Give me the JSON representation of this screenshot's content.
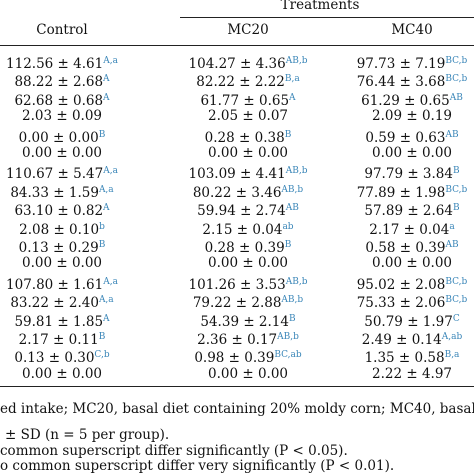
{
  "table": {
    "group_header": "Treatments",
    "columns": [
      "Control",
      "MC20",
      "MC40"
    ],
    "rows": [
      [
        {
          "text": "112.56 ± 4.61",
          "sup": "A,a"
        },
        {
          "text": "104.27 ± 4.36",
          "sup": "AB,b"
        },
        {
          "text": "97.73 ± 7.19",
          "sup": "BC,b"
        }
      ],
      [
        {
          "text": "88.22 ± 2.68",
          "sup": "A"
        },
        {
          "text": "82.22 ± 2.22",
          "sup": "B,a"
        },
        {
          "text": "76.44 ± 3.68",
          "sup": "BC,b"
        }
      ],
      [
        {
          "text": "62.68 ± 0.68",
          "sup": "A"
        },
        {
          "text": "61.77 ± 0.65",
          "sup": "A"
        },
        {
          "text": "61.29 ± 0.65",
          "sup": "AB"
        }
      ],
      [
        {
          "text": "2.03 ± 0.09"
        },
        {
          "text": "2.05 ± 0.07"
        },
        {
          "text": "2.09 ± 0.19"
        }
      ],
      [
        {
          "text": "0.00 ± 0.00",
          "sup": "B"
        },
        {
          "text": "0.28 ± 0.38",
          "sup": "B"
        },
        {
          "text": "0.59 ± 0.63",
          "sup": "AB"
        }
      ],
      [
        {
          "text": "0.00 ± 0.00"
        },
        {
          "text": "0.00 ± 0.00"
        },
        {
          "text": "0.00 ± 0.00"
        }
      ],
      [
        {
          "text": "110.67 ± 5.47",
          "sup": "A,a"
        },
        {
          "text": "103.09 ± 4.41",
          "sup": "AB,b"
        },
        {
          "text": "97.79 ± 3.84",
          "sup": "B"
        }
      ],
      [
        {
          "text": "84.33 ± 1.59",
          "sup": "A,a"
        },
        {
          "text": "80.22 ± 3.46",
          "sup": "AB,b"
        },
        {
          "text": "77.89 ± 1.98",
          "sup": "BC,b"
        }
      ],
      [
        {
          "text": "63.10 ± 0.82",
          "sup": "A"
        },
        {
          "text": "59.94 ± 2.74",
          "sup": "AB"
        },
        {
          "text": "57.89 ± 2.64",
          "sup": "B"
        }
      ],
      [
        {
          "text": "2.08 ± 0.10",
          "sup": "b"
        },
        {
          "text": "2.15 ± 0.04",
          "sup": "ab"
        },
        {
          "text": "2.17 ± 0.04",
          "sup": "a"
        }
      ],
      [
        {
          "text": "0.13 ± 0.29",
          "sup": "B"
        },
        {
          "text": "0.28 ± 0.39",
          "sup": "B"
        },
        {
          "text": "0.58 ± 0.39",
          "sup": "AB"
        }
      ],
      [
        {
          "text": "0.00 ± 0.00"
        },
        {
          "text": "0.00 ± 0.00"
        },
        {
          "text": "0.00 ± 0.00"
        }
      ],
      [
        {
          "text": "107.80 ± 1.61",
          "sup": "A,a"
        },
        {
          "text": "101.26 ± 3.53",
          "sup": "AB,b"
        },
        {
          "text": "95.02 ± 2.08",
          "sup": "BC,b"
        }
      ],
      [
        {
          "text": "83.22 ± 2.40",
          "sup": "A,a"
        },
        {
          "text": "79.22 ± 2.88",
          "sup": "AB,b"
        },
        {
          "text": "75.33 ± 2.06",
          "sup": "BC,b"
        }
      ],
      [
        {
          "text": "59.81 ± 1.85",
          "sup": "A"
        },
        {
          "text": "54.39 ± 2.14",
          "sup": "B"
        },
        {
          "text": "50.79 ± 1.97",
          "sup": "C"
        }
      ],
      [
        {
          "text": "2.17 ± 0.11",
          "sup": "B"
        },
        {
          "text": "2.36 ± 0.17",
          "sup": "AB,b"
        },
        {
          "text": "2.49 ± 0.14",
          "sup": "A,ab"
        }
      ],
      [
        {
          "text": "0.13 ± 0.30",
          "sup": "C,b"
        },
        {
          "text": "0.98 ± 0.39",
          "sup": "BC,ab"
        },
        {
          "text": "1.35 ± 0.58",
          "sup": "B,a"
        }
      ],
      [
        {
          "text": "0.00 ± 0.00"
        },
        {
          "text": "0.00 ± 0.00"
        },
        {
          "text": "2.22 ± 4.97"
        }
      ]
    ]
  },
  "footnotes": [
    "ed intake; MC20, basal diet containing 20% moldy corn; MC40, basal",
    "± SD (n = 5 per group).",
    "common superscript differ significantly (P < 0.05).",
    "o common superscript differ very significantly (P < 0.01)."
  ]
}
